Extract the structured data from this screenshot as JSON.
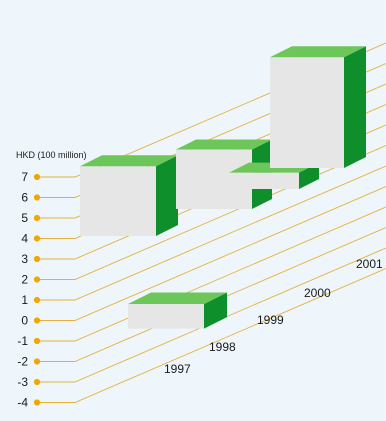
{
  "chart_data": {
    "type": "bar",
    "ylabel": "HKD (100 million)",
    "y_ticks": [
      7,
      6,
      5,
      4,
      3,
      2,
      1,
      0,
      -1,
      -2,
      -3,
      -4
    ],
    "ylim": [
      -4,
      7
    ],
    "categories": [
      "1997",
      "1998",
      "1999",
      "2000",
      "2001"
    ],
    "values": [
      -1.2,
      3.4,
      2.9,
      0.8,
      5.4
    ],
    "colors": {
      "front": "#e6e6e6",
      "side": "#0f8f2b",
      "top": "#6cc65a",
      "guide_line": "#e5b13a",
      "tick_dot": "#f0a800"
    }
  }
}
